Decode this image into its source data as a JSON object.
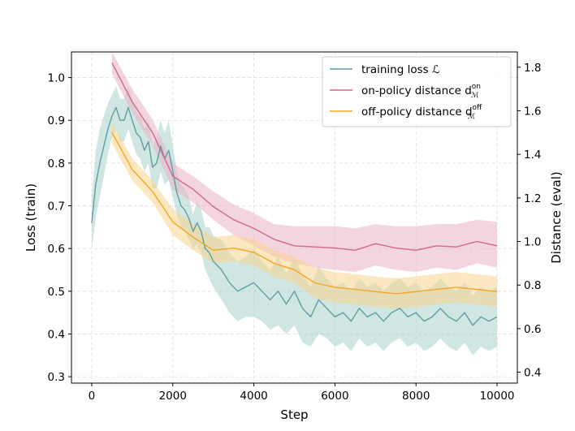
{
  "chart_data": {
    "type": "line",
    "xlabel": "Step",
    "ylabel_left": "Loss (train)",
    "ylabel_right": "Distance (eval)",
    "xlim": [
      -500,
      10500
    ],
    "ylim_left": [
      0.285,
      1.06
    ],
    "ylim_right": [
      0.35,
      1.87
    ],
    "grid": true,
    "legend_position": "top-right",
    "x_ticks": [
      0,
      2000,
      4000,
      6000,
      8000,
      10000
    ],
    "x_tick_labels": [
      "0",
      "2000",
      "4000",
      "6000",
      "8000",
      "10000"
    ],
    "y_left_ticks": [
      0.3,
      0.4,
      0.5,
      0.6,
      0.7,
      0.8,
      0.9,
      1.0
    ],
    "y_left_tick_labels": [
      "0.3",
      "0.4",
      "0.5",
      "0.6",
      "0.7",
      "0.8",
      "0.9",
      "1.0"
    ],
    "y_right_ticks": [
      0.4,
      0.6,
      0.8,
      1.0,
      1.2,
      1.4,
      1.6,
      1.8
    ],
    "y_right_tick_labels": [
      "0.4",
      "0.6",
      "0.8",
      "1.0",
      "1.2",
      "1.4",
      "1.6",
      "1.8"
    ],
    "legend": [
      {
        "label": "training loss ℒ",
        "color": "#5f9ea0"
      },
      {
        "label": "on-policy distance d",
        "sub": "ℳ",
        "sup": "on",
        "color": "#d4668f"
      },
      {
        "label": "off-policy distance d",
        "sub": "ℳ",
        "sup": "off",
        "color": "#f5a623"
      }
    ],
    "series": [
      {
        "name": "training loss ℒ",
        "axis": "left",
        "color": "#5f9ea0",
        "band_color": "#a9d1cc",
        "x": [
          0,
          100,
          200,
          300,
          400,
          500,
          600,
          700,
          800,
          900,
          1000,
          1100,
          1200,
          1300,
          1400,
          1500,
          1600,
          1700,
          1800,
          1900,
          2000,
          2100,
          2200,
          2300,
          2400,
          2500,
          2600,
          2700,
          2800,
          2900,
          3000,
          3200,
          3400,
          3600,
          3800,
          4000,
          4200,
          4400,
          4600,
          4800,
          5000,
          5200,
          5400,
          5600,
          5800,
          6000,
          6200,
          6400,
          6600,
          6800,
          7000,
          7200,
          7400,
          7600,
          7800,
          8000,
          8200,
          8400,
          8600,
          8800,
          9000,
          9200,
          9400,
          9600,
          9800,
          10000
        ],
        "y": [
          0.66,
          0.75,
          0.8,
          0.84,
          0.88,
          0.91,
          0.93,
          0.9,
          0.9,
          0.93,
          0.9,
          0.87,
          0.86,
          0.83,
          0.85,
          0.79,
          0.8,
          0.84,
          0.81,
          0.83,
          0.78,
          0.73,
          0.7,
          0.69,
          0.67,
          0.64,
          0.66,
          0.64,
          0.6,
          0.59,
          0.57,
          0.55,
          0.52,
          0.5,
          0.51,
          0.52,
          0.5,
          0.48,
          0.5,
          0.47,
          0.5,
          0.46,
          0.44,
          0.48,
          0.46,
          0.44,
          0.45,
          0.43,
          0.46,
          0.44,
          0.45,
          0.43,
          0.45,
          0.46,
          0.44,
          0.45,
          0.43,
          0.44,
          0.46,
          0.44,
          0.43,
          0.45,
          0.42,
          0.44,
          0.43,
          0.44
        ],
        "lower": [
          0.6,
          0.67,
          0.72,
          0.77,
          0.82,
          0.86,
          0.88,
          0.85,
          0.85,
          0.88,
          0.85,
          0.82,
          0.81,
          0.78,
          0.8,
          0.74,
          0.74,
          0.78,
          0.75,
          0.76,
          0.72,
          0.68,
          0.65,
          0.64,
          0.62,
          0.6,
          0.61,
          0.59,
          0.55,
          0.53,
          0.51,
          0.48,
          0.45,
          0.43,
          0.44,
          0.44,
          0.43,
          0.41,
          0.42,
          0.4,
          0.42,
          0.38,
          0.37,
          0.4,
          0.39,
          0.37,
          0.38,
          0.36,
          0.39,
          0.37,
          0.38,
          0.36,
          0.38,
          0.39,
          0.37,
          0.38,
          0.36,
          0.37,
          0.39,
          0.37,
          0.36,
          0.38,
          0.35,
          0.37,
          0.36,
          0.37
        ],
        "upper": [
          0.72,
          0.83,
          0.88,
          0.91,
          0.94,
          0.96,
          0.98,
          0.95,
          0.95,
          0.98,
          0.95,
          0.92,
          0.91,
          0.88,
          0.9,
          0.84,
          0.86,
          0.9,
          0.87,
          0.9,
          0.84,
          0.78,
          0.75,
          0.74,
          0.72,
          0.68,
          0.71,
          0.69,
          0.65,
          0.65,
          0.63,
          0.62,
          0.59,
          0.57,
          0.58,
          0.6,
          0.57,
          0.55,
          0.58,
          0.54,
          0.58,
          0.54,
          0.51,
          0.56,
          0.53,
          0.51,
          0.52,
          0.5,
          0.53,
          0.51,
          0.52,
          0.5,
          0.52,
          0.53,
          0.51,
          0.52,
          0.5,
          0.51,
          0.53,
          0.51,
          0.5,
          0.52,
          0.49,
          0.51,
          0.5,
          0.51
        ]
      },
      {
        "name": "on-policy distance d_ℳ^on",
        "axis": "right",
        "color": "#d4668f",
        "band_color": "#eab3c7",
        "x": [
          500,
          1000,
          1500,
          2000,
          2500,
          3000,
          3500,
          4000,
          4500,
          5000,
          5500,
          6000,
          6500,
          7000,
          7500,
          8000,
          8500,
          9000,
          9500,
          10000
        ],
        "y": [
          1.82,
          1.64,
          1.5,
          1.3,
          1.24,
          1.16,
          1.1,
          1.06,
          1.01,
          0.98,
          0.975,
          0.97,
          0.96,
          0.99,
          0.97,
          0.96,
          0.98,
          0.975,
          1.0,
          0.98
        ],
        "lower": [
          1.77,
          1.59,
          1.44,
          1.24,
          1.18,
          1.1,
          1.03,
          0.98,
          0.93,
          0.9,
          0.88,
          0.87,
          0.86,
          0.89,
          0.87,
          0.86,
          0.88,
          0.87,
          0.9,
          0.88
        ],
        "upper": [
          1.87,
          1.7,
          1.56,
          1.36,
          1.3,
          1.23,
          1.17,
          1.13,
          1.08,
          1.07,
          1.07,
          1.07,
          1.06,
          1.08,
          1.07,
          1.07,
          1.08,
          1.08,
          1.1,
          1.09
        ]
      },
      {
        "name": "off-policy distance d_ℳ^off",
        "axis": "right",
        "color": "#f5a623",
        "band_color": "#f7d38c",
        "x": [
          500,
          1000,
          1500,
          2000,
          2500,
          3000,
          3500,
          4000,
          4500,
          5000,
          5500,
          6000,
          6500,
          7000,
          7500,
          8000,
          8500,
          9000,
          9500,
          10000
        ],
        "y": [
          1.5,
          1.33,
          1.23,
          1.09,
          1.02,
          0.96,
          0.97,
          0.95,
          0.9,
          0.87,
          0.81,
          0.79,
          0.78,
          0.77,
          0.76,
          0.77,
          0.78,
          0.79,
          0.78,
          0.77
        ],
        "lower": [
          1.45,
          1.28,
          1.18,
          1.03,
          0.96,
          0.9,
          0.91,
          0.89,
          0.84,
          0.81,
          0.74,
          0.72,
          0.71,
          0.7,
          0.69,
          0.7,
          0.71,
          0.72,
          0.71,
          0.7
        ],
        "upper": [
          1.55,
          1.38,
          1.28,
          1.15,
          1.08,
          1.02,
          1.03,
          1.01,
          0.96,
          0.93,
          0.88,
          0.86,
          0.85,
          0.84,
          0.83,
          0.84,
          0.85,
          0.86,
          0.85,
          0.84
        ]
      }
    ]
  }
}
